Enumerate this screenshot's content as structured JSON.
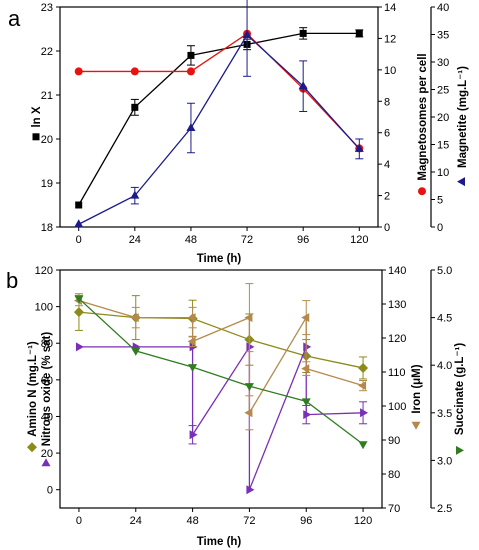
{
  "chart_data": [
    {
      "type": "line",
      "panel_label": "a",
      "xlabel": "Time (h)",
      "x": [
        0,
        24,
        48,
        72,
        96,
        120
      ],
      "xticks": [
        "0",
        "24",
        "48",
        "72",
        "96",
        "120"
      ],
      "xlim": [
        -8,
        128
      ],
      "axes": {
        "left": {
          "label": "ln X",
          "ylim": [
            18,
            23
          ],
          "ticks": [
            "18",
            "19",
            "20",
            "21",
            "22",
            "23"
          ]
        },
        "right1": {
          "label": "Magnetosomes per cell",
          "ylim": [
            0,
            14
          ],
          "ticks": [
            "0",
            "2",
            "4",
            "6",
            "8",
            "10",
            "12",
            "14"
          ]
        },
        "right2": {
          "label": "Magnetite (mg.L⁻¹)",
          "ylim": [
            0,
            40
          ],
          "ticks": [
            "0",
            "5",
            "10",
            "15",
            "20",
            "25",
            "30",
            "35",
            "40"
          ]
        }
      },
      "series": [
        {
          "name": "ln X",
          "axis": "left",
          "color": "#000000",
          "marker": "square",
          "values": [
            18.5,
            20.72,
            21.9,
            22.15,
            22.4,
            22.4
          ],
          "errors": [
            0,
            0.18,
            0.22,
            0.12,
            0.13,
            0.08
          ]
        },
        {
          "name": "Magnetosomes per cell",
          "axis": "right1",
          "color": "#e8120f",
          "marker": "circle",
          "values": [
            9.9,
            9.9,
            9.9,
            12.3,
            8.8,
            5.0
          ],
          "errors": [
            0,
            0,
            0,
            0,
            0,
            0
          ]
        },
        {
          "name": "Magnetite (mg.L⁻¹)",
          "axis": "right2",
          "color": "#1b1b8c",
          "marker": "triangle",
          "values": [
            0.5,
            5.7,
            18.0,
            34.9,
            25.6,
            14.2
          ],
          "errors": [
            0,
            1.5,
            4.5,
            7.5,
            4.6,
            1.8
          ]
        }
      ]
    },
    {
      "type": "line",
      "panel_label": "b",
      "xlabel": "Time (h)",
      "xlim": [
        -8,
        128
      ],
      "xticks": [
        "0",
        "24",
        "48",
        "72",
        "96",
        "120"
      ],
      "axes": {
        "left": {
          "label": "Amino N (mg.L⁻¹)",
          "label2": "Nitrous oxide (% sat)",
          "ylim": [
            -10,
            120
          ],
          "ticks": [
            "0",
            "20",
            "40",
            "60",
            "80",
            "100",
            "120"
          ]
        },
        "right1": {
          "label": "Iron (μM)",
          "ylim": [
            70,
            140
          ],
          "ticks": [
            "70",
            "80",
            "90",
            "100",
            "110",
            "120",
            "130",
            "140"
          ]
        },
        "right2": {
          "label": "Succinate (g.L⁻¹)",
          "ylim": [
            2.5,
            5.0
          ],
          "ticks": [
            "2.5",
            "3.0",
            "3.5",
            "4.0",
            "4.5",
            "5.0"
          ]
        }
      },
      "series": [
        {
          "name": "Amino N (mg.L⁻¹)",
          "axis": "left",
          "color": "#8b8b1a",
          "marker": "diamond",
          "x": [
            0,
            24,
            48,
            72,
            96,
            120
          ],
          "values": [
            97,
            94,
            93.5,
            82,
            73,
            66.5
          ],
          "errors": [
            10,
            12,
            10,
            14,
            9,
            6
          ]
        },
        {
          "name": "Nitrous oxide (% sat)",
          "axis": "left",
          "color": "#7a2fb8",
          "marker": "triangle-right",
          "x": [
            0,
            24,
            48,
            48,
            72,
            72,
            96,
            96,
            120
          ],
          "values": [
            78,
            78,
            78,
            30,
            78,
            0,
            78,
            41,
            42
          ],
          "errors": [
            0,
            0,
            0,
            5,
            0,
            0,
            0,
            5,
            6
          ]
        },
        {
          "name": "Iron (μM)",
          "axis": "right1",
          "color": "#b5894e",
          "marker": "triangle-left",
          "x": [
            0,
            24,
            48,
            48,
            72,
            72,
            96,
            96,
            120
          ],
          "values": [
            131,
            126,
            126,
            119,
            126,
            98,
            126,
            111,
            106
          ],
          "errors": [
            1.5,
            3,
            3,
            1.5,
            10,
            5,
            5,
            2,
            1.5
          ]
        },
        {
          "name": "Succinate (g.L⁻¹)",
          "axis": "right2",
          "color": "#2f7d1f",
          "marker": "triangle-down",
          "x": [
            0,
            24,
            48,
            72,
            96,
            120
          ],
          "values": [
            4.7,
            4.15,
            3.98,
            3.78,
            3.62,
            3.17
          ],
          "errors": [
            0,
            0,
            0,
            0,
            0,
            0
          ]
        }
      ]
    }
  ]
}
